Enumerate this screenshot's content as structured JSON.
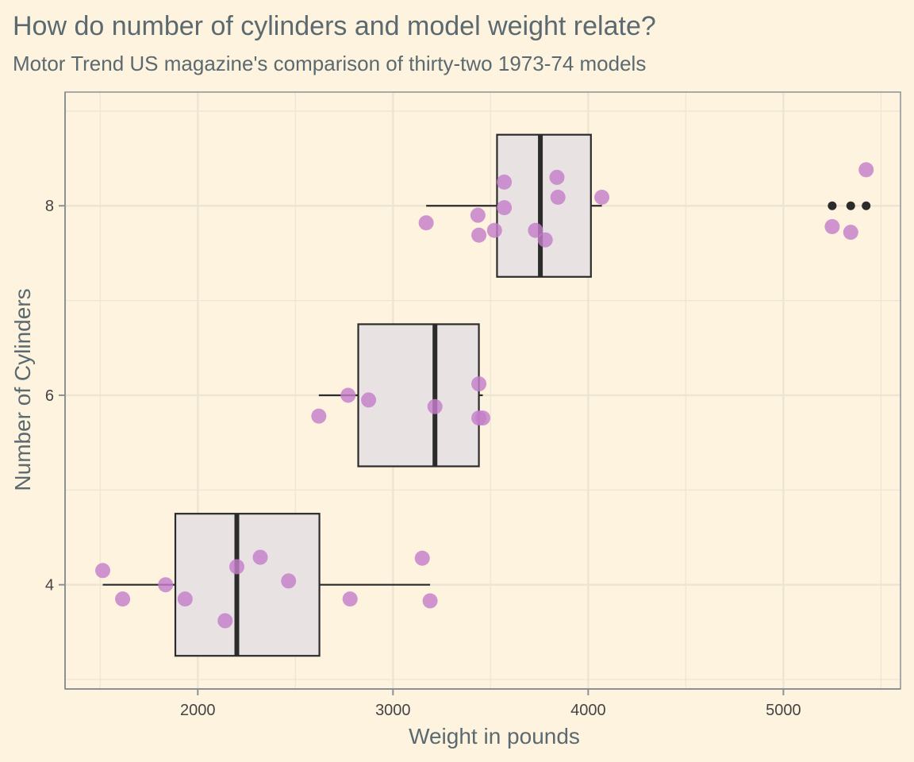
{
  "chart_data": {
    "type": "boxplot",
    "title": "How do number of cylinders and model weight relate?",
    "subtitle": "Motor Trend US magazine's comparison of thirty-two 1973-74 models",
    "xlabel": "Weight in pounds",
    "ylabel": "Number of Cylinders",
    "xlim": [
      1320,
      5600
    ],
    "ylim": [
      2.9,
      9.2
    ],
    "x_ticks": [
      2000,
      3000,
      4000,
      5000
    ],
    "y_ticks": [
      4,
      6,
      8
    ],
    "grid": true,
    "colors": {
      "background": "#fdf3de",
      "box_fill": "#e8e2e3",
      "box_line": "#2b2b2b",
      "point": "#c47fc9",
      "grid": "#ece5d3",
      "border": "#8a9295",
      "text": "#5b6a70",
      "tick_text": "#444444"
    },
    "boxes": [
      {
        "cylinders": 4,
        "min": 1513,
        "q1": 1885,
        "median": 2200,
        "q3": 2623,
        "max": 3190,
        "outliers": []
      },
      {
        "cylinders": 6,
        "min": 2620,
        "q1": 2822,
        "median": 3215,
        "q3": 3440,
        "max": 3460,
        "outliers": []
      },
      {
        "cylinders": 8,
        "min": 3170,
        "q1": 3533,
        "median": 3755,
        "q3": 4014,
        "max": 4070,
        "outliers": [
          5250,
          5345,
          5424
        ]
      }
    ],
    "points": [
      {
        "cylinders": 4,
        "weight": 1513,
        "y": 4.15
      },
      {
        "cylinders": 4,
        "weight": 1615,
        "y": 3.85
      },
      {
        "cylinders": 4,
        "weight": 1835,
        "y": 4.0
      },
      {
        "cylinders": 4,
        "weight": 1935,
        "y": 3.85
      },
      {
        "cylinders": 4,
        "weight": 2140,
        "y": 3.62
      },
      {
        "cylinders": 4,
        "weight": 2200,
        "y": 4.19
      },
      {
        "cylinders": 4,
        "weight": 2320,
        "y": 4.29
      },
      {
        "cylinders": 4,
        "weight": 2465,
        "y": 4.04
      },
      {
        "cylinders": 4,
        "weight": 2780,
        "y": 3.85
      },
      {
        "cylinders": 4,
        "weight": 3150,
        "y": 4.28
      },
      {
        "cylinders": 4,
        "weight": 3190,
        "y": 3.83
      },
      {
        "cylinders": 6,
        "weight": 2620,
        "y": 5.78
      },
      {
        "cylinders": 6,
        "weight": 2770,
        "y": 6.0
      },
      {
        "cylinders": 6,
        "weight": 2875,
        "y": 5.95
      },
      {
        "cylinders": 6,
        "weight": 3215,
        "y": 5.88
      },
      {
        "cylinders": 6,
        "weight": 3440,
        "y": 6.12
      },
      {
        "cylinders": 6,
        "weight": 3440,
        "y": 5.76
      },
      {
        "cylinders": 6,
        "weight": 3460,
        "y": 5.76
      },
      {
        "cylinders": 8,
        "weight": 3170,
        "y": 7.82
      },
      {
        "cylinders": 8,
        "weight": 3435,
        "y": 7.9
      },
      {
        "cylinders": 8,
        "weight": 3440,
        "y": 7.69
      },
      {
        "cylinders": 8,
        "weight": 3520,
        "y": 7.74
      },
      {
        "cylinders": 8,
        "weight": 3570,
        "y": 8.25
      },
      {
        "cylinders": 8,
        "weight": 3570,
        "y": 7.98
      },
      {
        "cylinders": 8,
        "weight": 3730,
        "y": 7.74
      },
      {
        "cylinders": 8,
        "weight": 3780,
        "y": 7.64
      },
      {
        "cylinders": 8,
        "weight": 3840,
        "y": 8.3
      },
      {
        "cylinders": 8,
        "weight": 3845,
        "y": 8.09
      },
      {
        "cylinders": 8,
        "weight": 4070,
        "y": 8.09
      },
      {
        "cylinders": 8,
        "weight": 5250,
        "y": 7.78
      },
      {
        "cylinders": 8,
        "weight": 5345,
        "y": 7.72
      },
      {
        "cylinders": 8,
        "weight": 5424,
        "y": 8.38
      }
    ]
  }
}
